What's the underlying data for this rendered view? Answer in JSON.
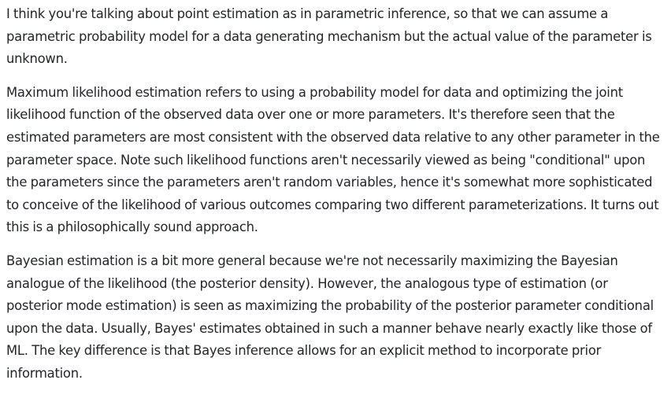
{
  "answer": {
    "paragraphs": [
      "I think you're talking about point estimation as in parametric inference, so that we can assume a parametric probability model for a data generating mechanism but the actual value of the parameter is unknown.",
      "Maximum likelihood estimation refers to using a probability model for data and optimizing the joint likelihood function of the observed data over one or more parameters. It's therefore seen that the estimated parameters are most consistent with the observed data relative to any other parameter in the parameter space. Note such likelihood functions aren't necessarily viewed as being \"conditional\" upon the parameters since the parameters aren't random variables, hence it's somewhat more sophisticated to conceive of the likelihood of various outcomes comparing two different parameterizations. It turns out this is a philosophically sound approach.",
      "Bayesian estimation is a bit more general because we're not necessarily maximizing the Bayesian analogue of the likelihood (the posterior density). However, the analogous type of estimation (or posterior mode estimation) is seen as maximizing the probability of the posterior parameter conditional upon the data. Usually, Bayes' estimates obtained in such a manner behave nearly exactly like those of ML. The key difference is that Bayes inference allows for an explicit method to incorporate prior information."
    ]
  }
}
